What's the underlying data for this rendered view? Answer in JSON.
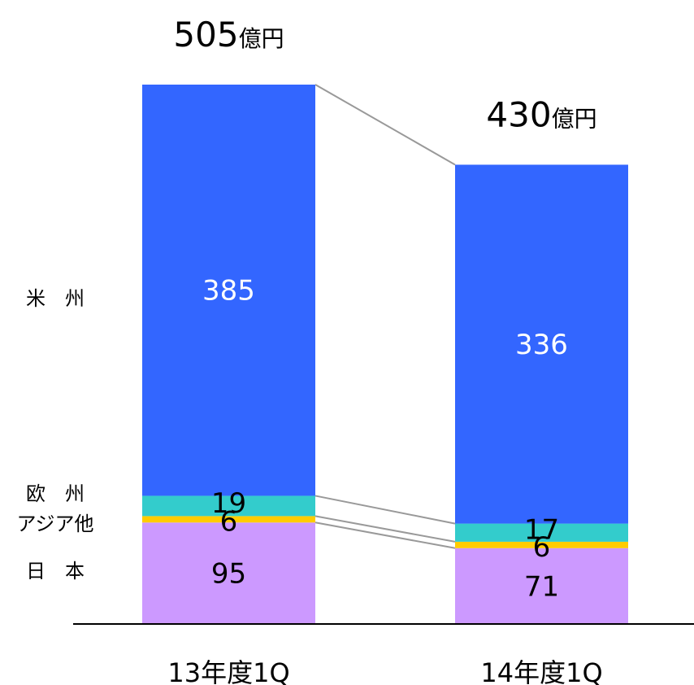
{
  "chart_data": {
    "type": "bar",
    "stacked": true,
    "title": "",
    "xlabel": "",
    "ylabel": "",
    "ylim": [
      0,
      505
    ],
    "grid": false,
    "legend": "left",
    "categories": [
      "13年度1Q",
      "14年度1Q"
    ],
    "totals": [
      {
        "number": "505",
        "unit": "億円"
      },
      {
        "number": "430",
        "unit": "億円"
      }
    ],
    "series": [
      {
        "name": "日　本",
        "values": [
          95,
          71
        ],
        "color": "#cc99ff",
        "label_color": "#000000"
      },
      {
        "name": "アジア他",
        "values": [
          6,
          6
        ],
        "color": "#ffcc00",
        "label_color": "#000000"
      },
      {
        "name": "欧　州",
        "values": [
          19,
          17
        ],
        "color": "#33cccc",
        "label_color": "#000000"
      },
      {
        "name": "米　州",
        "values": [
          385,
          336
        ],
        "color": "#3366ff",
        "label_color": "#ffffff"
      }
    ],
    "connector_color": "#999999",
    "axis_color": "#000000"
  }
}
